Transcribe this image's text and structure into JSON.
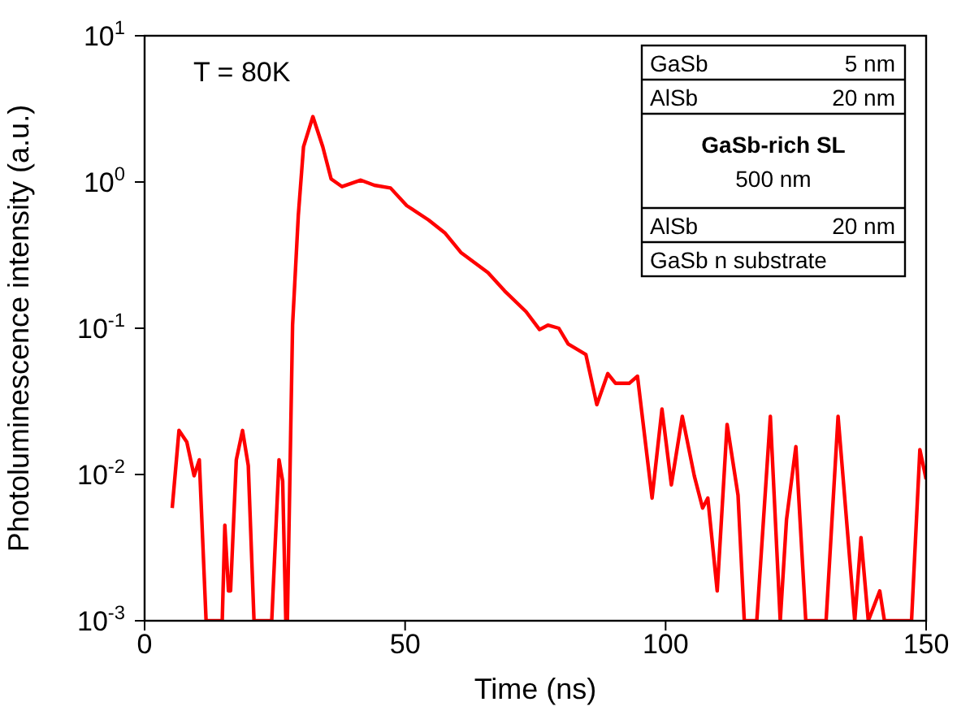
{
  "chart_data": {
    "type": "line",
    "xlabel": "Time (ns)",
    "ylabel": "Photoluminescence intensity (a.u.)",
    "log": "y",
    "grid": false,
    "legend": false,
    "marker": "none",
    "line_style": "solid",
    "xlim": [
      0,
      150
    ],
    "xticks": [
      0,
      50,
      100,
      150
    ],
    "ylim": [
      0.001,
      10
    ],
    "yticks": [
      {
        "value": 0.001,
        "label": "10$^{-3}$"
      },
      {
        "value": 0.01,
        "label": "10$^{-2}$"
      },
      {
        "value": 0.1,
        "label": "10$^{-1}$"
      },
      {
        "value": 1,
        "label": "10$^{0}$"
      },
      {
        "value": 10,
        "label": "10$^{1}$"
      }
    ],
    "annotations": [
      "T = 80K",
      "GaSb",
      "5 nm",
      "AlSb",
      "20 nm",
      "GaSb-rich SL",
      "500 nm",
      "AlSb",
      "20 nm",
      "GaSb n substrate"
    ],
    "series": [
      {
        "color": "#ff0000",
        "x": [
          5.3,
          6.6,
          8.1,
          9.5,
          10.5,
          11.8,
          14.9,
          15.4,
          16.1,
          16.5,
          17.6,
          18.8,
          19.9,
          21.0,
          24.4,
          25.8,
          26.5,
          27.1,
          27.4,
          28.4,
          29.5,
          30.5,
          32.3,
          34.2,
          35.8,
          37.9,
          41.5,
          44.1,
          47.2,
          50.3,
          54.5,
          57.6,
          60.7,
          65.9,
          69.1,
          73.2,
          75.8,
          77.4,
          79.5,
          81.3,
          84.7,
          86.8,
          88.9,
          90.4,
          93.0,
          94.6,
          97.4,
          99.3,
          101.1,
          103.2,
          105.5,
          107.1,
          108.1,
          109.9,
          111.8,
          113.9,
          115.1,
          117.5,
          120.1,
          122.0,
          123.2,
          125.0,
          126.9,
          130.8,
          133.1,
          136.3,
          137.5,
          138.9,
          141.1,
          142.0,
          147.2,
          148.8,
          150
        ],
        "values": [
          0.0059,
          0.02,
          0.0167,
          0.0098,
          0.0126,
          0.001,
          0.001,
          0.0045,
          0.0016,
          0.0016,
          0.0126,
          0.02,
          0.0115,
          0.001,
          0.001,
          0.0126,
          0.009,
          0.001,
          0.001,
          0.105,
          0.59,
          1.74,
          2.8,
          1.74,
          1.05,
          0.93,
          1.03,
          0.95,
          0.91,
          0.69,
          0.55,
          0.45,
          0.33,
          0.24,
          0.18,
          0.13,
          0.098,
          0.105,
          0.1,
          0.078,
          0.066,
          0.03,
          0.049,
          0.042,
          0.042,
          0.047,
          0.0069,
          0.028,
          0.0085,
          0.025,
          0.0098,
          0.0059,
          0.0069,
          0.0016,
          0.022,
          0.0072,
          0.001,
          0.001,
          0.025,
          0.001,
          0.0049,
          0.0155,
          0.001,
          0.001,
          0.025,
          0.001,
          0.0037,
          0.001,
          0.0016,
          0.001,
          0.001,
          0.0148,
          0.0093
        ]
      }
    ]
  }
}
